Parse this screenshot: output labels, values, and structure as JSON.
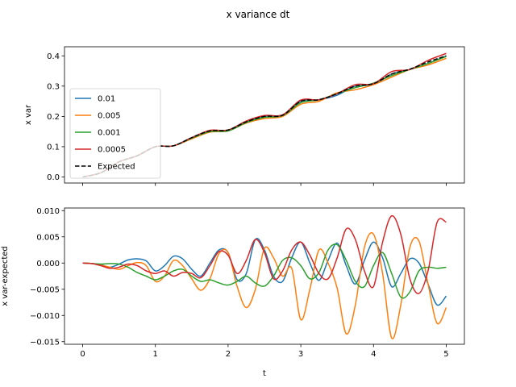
{
  "chart_data": [
    {
      "type": "line",
      "title": "x variance dt",
      "xlabel": "",
      "ylabel": "x var",
      "xlim": [
        -0.25,
        5.25
      ],
      "ylim": [
        -0.02,
        0.43
      ],
      "xticks": [
        0,
        1,
        2,
        3,
        4,
        5
      ],
      "xtick_labels_visible": false,
      "yticks": [
        0.0,
        0.1,
        0.2,
        0.3,
        0.4
      ],
      "ytick_labels": [
        "0.0",
        "0.1",
        "0.2",
        "0.3",
        "0.4"
      ],
      "legend_position": "lower-left",
      "grid": false,
      "x": [
        0.0,
        0.25,
        0.5,
        0.75,
        1.0,
        1.25,
        1.5,
        1.75,
        2.0,
        2.25,
        2.5,
        2.75,
        3.0,
        3.25,
        3.5,
        3.75,
        4.0,
        4.25,
        4.5,
        4.75,
        5.0
      ],
      "series": [
        {
          "name": "0.01",
          "color": "#1f77b4",
          "dash": "solid",
          "values": [
            0.0,
            0.014,
            0.05,
            0.07,
            0.1,
            0.103,
            0.13,
            0.152,
            0.155,
            0.183,
            0.2,
            0.205,
            0.25,
            0.255,
            0.27,
            0.3,
            0.305,
            0.34,
            0.355,
            0.375,
            0.4
          ]
        },
        {
          "name": "0.005",
          "color": "#ff7f0e",
          "dash": "solid",
          "values": [
            0.0,
            0.014,
            0.05,
            0.07,
            0.1,
            0.103,
            0.126,
            0.148,
            0.152,
            0.178,
            0.193,
            0.2,
            0.24,
            0.25,
            0.278,
            0.288,
            0.305,
            0.33,
            0.355,
            0.37,
            0.392
          ]
        },
        {
          "name": "0.001",
          "color": "#2ca02c",
          "dash": "solid",
          "values": [
            0.0,
            0.014,
            0.05,
            0.07,
            0.1,
            0.103,
            0.128,
            0.15,
            0.152,
            0.18,
            0.197,
            0.203,
            0.245,
            0.255,
            0.275,
            0.295,
            0.31,
            0.335,
            0.355,
            0.375,
            0.398
          ]
        },
        {
          "name": "0.0005",
          "color": "#d62728",
          "dash": "solid",
          "values": [
            0.0,
            0.014,
            0.05,
            0.07,
            0.1,
            0.103,
            0.13,
            0.154,
            0.155,
            0.185,
            0.203,
            0.205,
            0.254,
            0.255,
            0.275,
            0.305,
            0.308,
            0.348,
            0.355,
            0.385,
            0.408
          ]
        },
        {
          "name": "Expected",
          "color": "#000000",
          "dash": "dashed",
          "values": [
            0.0,
            0.014,
            0.05,
            0.07,
            0.1,
            0.103,
            0.13,
            0.152,
            0.155,
            0.182,
            0.2,
            0.204,
            0.25,
            0.255,
            0.275,
            0.3,
            0.308,
            0.34,
            0.356,
            0.38,
            0.4
          ]
        }
      ]
    },
    {
      "type": "line",
      "title": "",
      "xlabel": "t",
      "ylabel": "x var-expected",
      "xlim": [
        -0.25,
        5.25
      ],
      "ylim": [
        -0.0155,
        0.0105
      ],
      "xticks": [
        0,
        1,
        2,
        3,
        4,
        5
      ],
      "xtick_labels": [
        "0",
        "1",
        "2",
        "3",
        "4",
        "5"
      ],
      "yticks": [
        -0.015,
        -0.01,
        -0.005,
        0.0,
        0.005,
        0.01
      ],
      "ytick_labels": [
        "−0.015",
        "−0.010",
        "−0.005",
        "0.000",
        "0.005",
        "0.010"
      ],
      "grid": false,
      "x": [
        0.0,
        0.125,
        0.25,
        0.375,
        0.5,
        0.625,
        0.75,
        0.875,
        1.0,
        1.125,
        1.25,
        1.375,
        1.5,
        1.625,
        1.75,
        1.875,
        2.0,
        2.125,
        2.25,
        2.375,
        2.5,
        2.625,
        2.75,
        2.875,
        3.0,
        3.125,
        3.25,
        3.375,
        3.5,
        3.625,
        3.75,
        3.875,
        4.0,
        4.125,
        4.25,
        4.375,
        4.5,
        4.625,
        4.75,
        4.875,
        5.0
      ],
      "series": [
        {
          "name": "0.01",
          "color": "#1f77b4",
          "dash": "solid",
          "values": [
            0.0,
            -0.0001,
            -0.0003,
            -0.0008,
            -0.0002,
            0.0006,
            0.0008,
            0.0004,
            -0.0015,
            -0.0005,
            0.0013,
            0.0008,
            -0.0012,
            -0.0025,
            0.0,
            0.0025,
            0.002,
            -0.0032,
            -0.002,
            0.0045,
            0.0025,
            -0.0025,
            -0.0035,
            0.001,
            0.004,
            0.0,
            -0.0033,
            0.0005,
            0.0038,
            -0.0005,
            -0.004,
            0.0005,
            0.004,
            0.001,
            -0.0045,
            -0.002,
            0.0008,
            0.0,
            -0.004,
            -0.008,
            -0.0063
          ]
        },
        {
          "name": "0.005",
          "color": "#ff7f0e",
          "dash": "solid",
          "values": [
            0.0,
            -0.0001,
            -0.0004,
            -0.0008,
            -0.0012,
            -0.0005,
            0.0001,
            -0.0005,
            -0.0035,
            -0.0025,
            0.0005,
            -0.0005,
            -0.003,
            -0.0052,
            -0.003,
            0.0018,
            0.002,
            -0.0045,
            -0.0085,
            -0.005,
            0.0028,
            0.001,
            -0.0025,
            -0.001,
            -0.0108,
            -0.005,
            0.0025,
            0.0,
            -0.0048,
            -0.0135,
            -0.008,
            0.003,
            0.0055,
            -0.002,
            -0.0143,
            -0.008,
            0.003,
            0.0042,
            -0.004,
            -0.0115,
            -0.0085
          ]
        },
        {
          "name": "0.001",
          "color": "#2ca02c",
          "dash": "solid",
          "values": [
            0.0,
            -0.0001,
            -0.0002,
            -0.0001,
            -0.0002,
            -0.0008,
            -0.0018,
            -0.0025,
            -0.0032,
            -0.0025,
            -0.0015,
            -0.0012,
            -0.0025,
            -0.0035,
            -0.0032,
            -0.0038,
            -0.0042,
            -0.0035,
            -0.0025,
            -0.0038,
            -0.0044,
            -0.0025,
            0.0005,
            0.001,
            -0.0005,
            -0.003,
            -0.0018,
            0.0025,
            0.0035,
            0.0005,
            -0.0035,
            -0.0045,
            -0.0005,
            0.002,
            -0.002,
            -0.0065,
            -0.0055,
            -0.0015,
            -0.0008,
            -0.001,
            -0.0008
          ]
        },
        {
          "name": "0.0005",
          "color": "#d62728",
          "dash": "solid",
          "values": [
            0.0,
            -0.0001,
            -0.0005,
            -0.001,
            -0.0008,
            -0.0002,
            -0.0005,
            -0.0015,
            -0.002,
            -0.0015,
            -0.0025,
            -0.0018,
            -0.002,
            -0.0028,
            -0.0005,
            0.0022,
            0.0015,
            -0.002,
            0.0005,
            0.0045,
            0.002,
            -0.003,
            -0.0015,
            0.0025,
            0.004,
            0.0015,
            -0.002,
            -0.003,
            0.001,
            0.0065,
            0.0045,
            -0.0015,
            -0.0045,
            0.004,
            0.009,
            0.0055,
            -0.003,
            -0.0058,
            -0.0015,
            0.0078,
            0.0078
          ]
        }
      ]
    }
  ]
}
